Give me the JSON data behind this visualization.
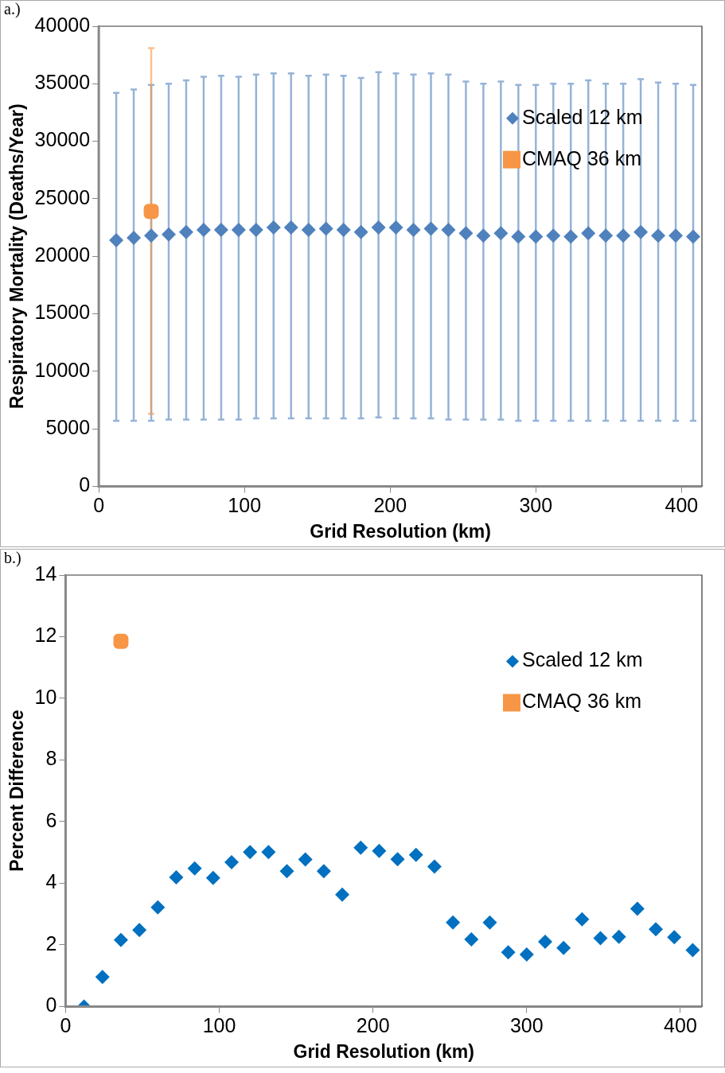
{
  "chart_data": [
    {
      "type": "scatter",
      "title": "a.)",
      "xlabel": "Grid Resolution (km)",
      "ylabel": "Respiratory Mortality (Deaths/Year)",
      "xlim": [
        0,
        414
      ],
      "xticks": [
        0,
        100,
        200,
        300,
        400
      ],
      "ylim": [
        0,
        40000
      ],
      "yticks": [
        0,
        5000,
        10000,
        15000,
        20000,
        25000,
        30000,
        35000,
        40000
      ],
      "grid": false,
      "legend": "top right",
      "series": [
        {
          "name": "Scaled 12 km",
          "color": "#4f81bd",
          "marker": "diamond",
          "x": [
            12,
            24,
            36,
            48,
            60,
            72,
            84,
            96,
            108,
            120,
            132,
            144,
            156,
            168,
            180,
            192,
            204,
            216,
            228,
            240,
            252,
            264,
            276,
            288,
            300,
            312,
            324,
            336,
            348,
            360,
            372,
            384,
            396,
            408
          ],
          "values": [
            21400,
            21600,
            21800,
            21900,
            22100,
            22300,
            22300,
            22300,
            22300,
            22500,
            22500,
            22300,
            22400,
            22300,
            22100,
            22500,
            22500,
            22300,
            22400,
            22300,
            22000,
            21800,
            22000,
            21700,
            21700,
            21800,
            21700,
            22000,
            21800,
            21800,
            22100,
            21800,
            21800,
            21700
          ],
          "errors": [
            [
              5700,
              34200
            ],
            [
              5700,
              34500
            ],
            [
              5700,
              34900
            ],
            [
              5800,
              35000
            ],
            [
              5800,
              35300
            ],
            [
              5800,
              35600
            ],
            [
              5800,
              35700
            ],
            [
              5800,
              35600
            ],
            [
              5900,
              35800
            ],
            [
              5900,
              35900
            ],
            [
              5900,
              35900
            ],
            [
              5900,
              35700
            ],
            [
              5900,
              35800
            ],
            [
              5900,
              35700
            ],
            [
              5900,
              35500
            ],
            [
              6000,
              36000
            ],
            [
              5900,
              35900
            ],
            [
              5900,
              35800
            ],
            [
              5900,
              35900
            ],
            [
              5800,
              35800
            ],
            [
              5800,
              35200
            ],
            [
              5800,
              35000
            ],
            [
              5800,
              35200
            ],
            [
              5700,
              34900
            ],
            [
              5700,
              34900
            ],
            [
              5700,
              35000
            ],
            [
              5700,
              35000
            ],
            [
              5700,
              35300
            ],
            [
              5700,
              35000
            ],
            [
              5700,
              35000
            ],
            [
              5700,
              35400
            ],
            [
              5700,
              35100
            ],
            [
              5700,
              35000
            ],
            [
              5700,
              34900
            ]
          ]
        },
        {
          "name": "CMAQ 36 km",
          "color": "#f79646",
          "marker": "square",
          "x": [
            36
          ],
          "values": [
            23900
          ],
          "errors": [
            [
              6300,
              38100
            ]
          ]
        }
      ]
    },
    {
      "type": "scatter",
      "title": "b.)",
      "xlabel": "Grid Resolution (km)",
      "ylabel": "Percent Difference",
      "xlim": [
        0,
        414
      ],
      "xticks": [
        0,
        100,
        200,
        300,
        400
      ],
      "ylim": [
        0,
        14
      ],
      "yticks": [
        0,
        2,
        4,
        6,
        8,
        10,
        12,
        14
      ],
      "grid": false,
      "legend": "top right",
      "series": [
        {
          "name": "Scaled 12 km",
          "color": "#0070c0",
          "marker": "diamond",
          "x": [
            12,
            24,
            36,
            48,
            60,
            72,
            84,
            96,
            108,
            120,
            132,
            144,
            156,
            168,
            180,
            192,
            204,
            216,
            228,
            240,
            252,
            264,
            276,
            288,
            300,
            312,
            324,
            336,
            348,
            360,
            372,
            384,
            396,
            408
          ],
          "values": [
            0.0,
            0.96,
            2.16,
            2.48,
            3.22,
            4.19,
            4.48,
            4.17,
            4.68,
            5.01,
            5.01,
            4.39,
            4.77,
            4.39,
            3.63,
            5.15,
            5.05,
            4.78,
            4.92,
            4.54,
            2.73,
            2.18,
            2.73,
            1.76,
            1.69,
            2.1,
            1.9,
            2.83,
            2.22,
            2.26,
            3.17,
            2.51,
            2.25,
            1.83
          ]
        },
        {
          "name": "CMAQ 36 km",
          "color": "#f79646",
          "marker": "square",
          "x": [
            36
          ],
          "values": [
            11.85
          ]
        }
      ]
    }
  ]
}
